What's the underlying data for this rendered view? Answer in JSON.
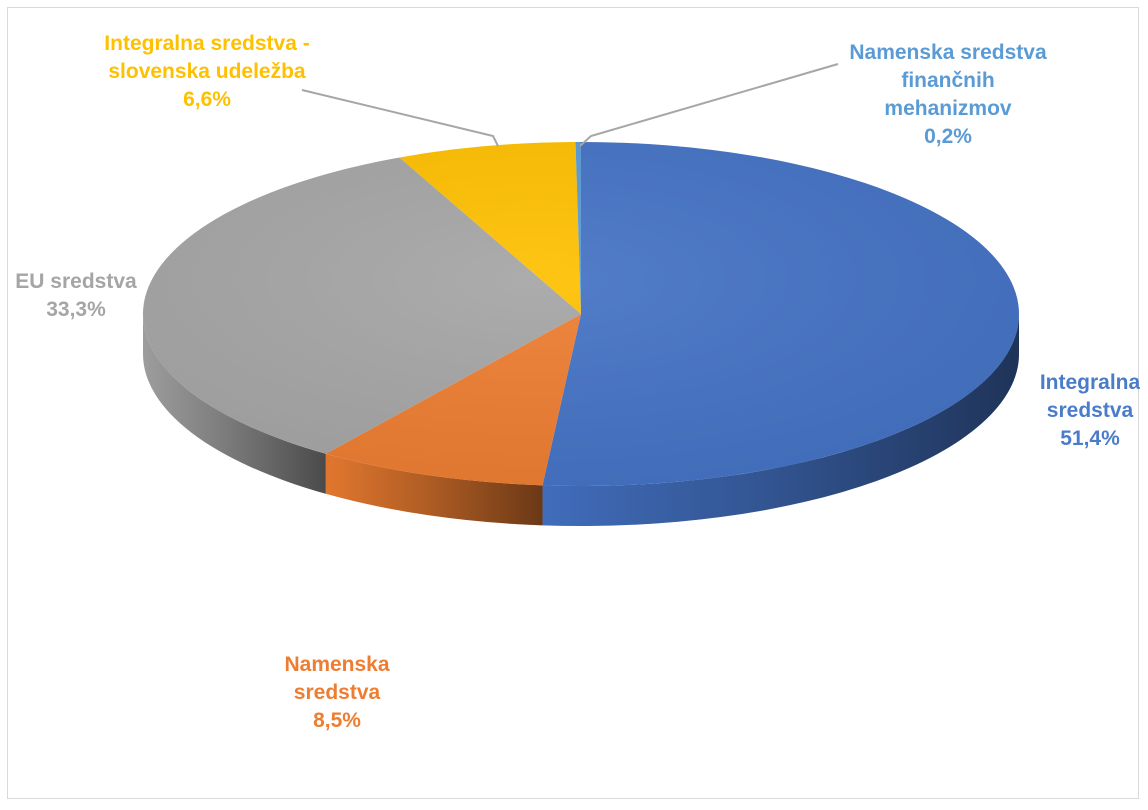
{
  "chart_data": {
    "type": "pie",
    "title": "",
    "slices": [
      {
        "label": "Integralna sredstva",
        "label_lines": [
          "Integralna",
          "sredstva"
        ],
        "value_label": "51,4%",
        "value": 51.4,
        "color": "#4472c4",
        "label_color": "#4a7cc9"
      },
      {
        "label": "Namenska sredstva",
        "label_lines": [
          "Namenska",
          "sredstva"
        ],
        "value_label": "8,5%",
        "value": 8.5,
        "color": "#ed7d31",
        "label_color": "#ed7d31"
      },
      {
        "label": "EU sredstva",
        "label_lines": [
          "EU sredstva"
        ],
        "value_label": "33,3%",
        "value": 33.3,
        "color": "#a5a5a5",
        "label_color": "#a5a5a5"
      },
      {
        "label": "Integralna sredstva - slovenska udeležba",
        "label_lines": [
          "Integralna sredstva -",
          "slovenska udeležba"
        ],
        "value_label": "6,6%",
        "value": 6.6,
        "color": "#ffc000",
        "label_color": "#ffc000"
      },
      {
        "label": "Namenska sredstva finančnih mehanizmov",
        "label_lines": [
          "Namenska sredstva",
          "finančnih",
          "mehanizmov"
        ],
        "value_label": "0,2%",
        "value": 0.2,
        "color": "#5b9bd5",
        "label_color": "#5b9bd5"
      }
    ],
    "legend": "none",
    "style": "3d"
  }
}
